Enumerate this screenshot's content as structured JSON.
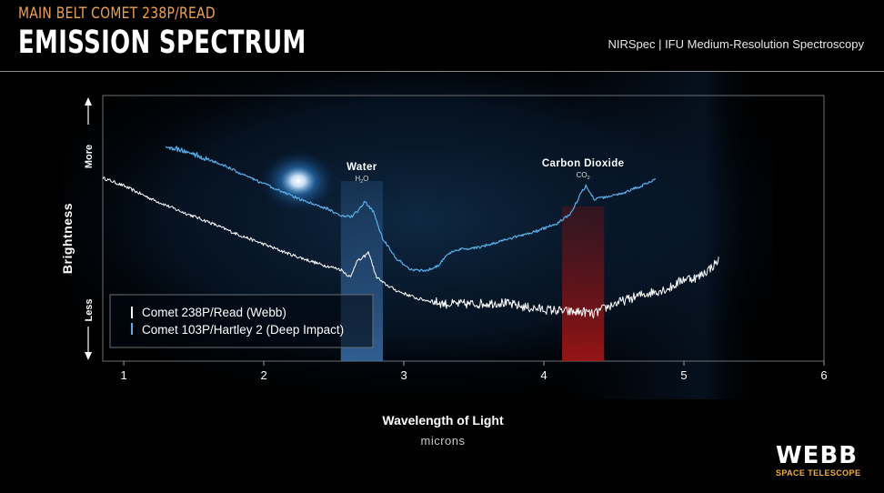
{
  "header": {
    "supertitle": "MAIN BELT COMET 238P/READ",
    "title": "EMISSION SPECTRUM",
    "instrument": "NIRSpec | IFU Medium-Resolution Spectroscopy"
  },
  "logo": {
    "main": "WEBB",
    "sub": "SPACE TELESCOPE"
  },
  "chart_data": {
    "type": "line",
    "xlabel": "Wavelength of Light",
    "xunit": "microns",
    "ylabel": "Brightness",
    "y_more_label": "More",
    "y_less_label": "Less",
    "xlim": [
      0.85,
      6
    ],
    "xticks": [
      1,
      2,
      3,
      4,
      5,
      6
    ],
    "grid": false,
    "legend_position": "lower-left",
    "colors": {
      "water_band": "#3a6fa8",
      "co2_band": "#a01818",
      "blue_line": "#5aaee8",
      "white_line": "#ffffff"
    },
    "bands": [
      {
        "label": "Water",
        "formula_base": "H",
        "formula_sub": "2",
        "formula_tail": "O",
        "x0": 2.55,
        "x1": 2.85,
        "color": "#3a6fa8"
      },
      {
        "label": "Carbon Dioxide",
        "formula_base": "CO",
        "formula_sub": "2",
        "formula_tail": "",
        "x0": 4.13,
        "x1": 4.43,
        "color": "#a01818"
      }
    ],
    "series": [
      {
        "name": "Comet 238P/Read (Webb)",
        "color": "#ffffff",
        "x": [
          0.85,
          1.0,
          1.2,
          1.4,
          1.6,
          1.8,
          2.0,
          2.2,
          2.4,
          2.55,
          2.62,
          2.66,
          2.7,
          2.75,
          2.8,
          2.85,
          2.95,
          3.1,
          3.3,
          3.5,
          3.7,
          3.9,
          4.1,
          4.2,
          4.3,
          4.35,
          4.4,
          4.5,
          4.7,
          4.9,
          5.0,
          5.1,
          5.2,
          5.25
        ],
        "y": [
          0.69,
          0.66,
          0.61,
          0.565,
          0.525,
          0.48,
          0.44,
          0.4,
          0.365,
          0.345,
          0.315,
          0.375,
          0.385,
          0.41,
          0.32,
          0.295,
          0.265,
          0.235,
          0.215,
          0.215,
          0.22,
          0.2,
          0.19,
          0.185,
          0.185,
          0.175,
          0.19,
          0.215,
          0.25,
          0.275,
          0.31,
          0.315,
          0.355,
          0.38
        ]
      },
      {
        "name": "Comet 103P/Hartley 2 (Deep Impact)",
        "color": "#5aaee8",
        "x": [
          1.3,
          1.5,
          1.7,
          1.9,
          2.1,
          2.3,
          2.45,
          2.55,
          2.63,
          2.68,
          2.72,
          2.78,
          2.85,
          2.95,
          3.05,
          3.15,
          3.25,
          3.3,
          3.4,
          3.55,
          3.75,
          3.95,
          4.1,
          4.2,
          4.26,
          4.3,
          4.36,
          4.42,
          4.55,
          4.7,
          4.8
        ],
        "y": [
          0.81,
          0.78,
          0.74,
          0.69,
          0.645,
          0.6,
          0.575,
          0.545,
          0.545,
          0.57,
          0.6,
          0.565,
          0.46,
          0.385,
          0.345,
          0.34,
          0.36,
          0.4,
          0.42,
          0.43,
          0.46,
          0.49,
          0.52,
          0.56,
          0.63,
          0.66,
          0.61,
          0.615,
          0.63,
          0.66,
          0.685
        ]
      }
    ]
  }
}
